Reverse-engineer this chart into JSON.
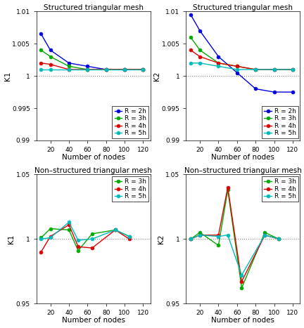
{
  "top_left": {
    "title": "Structured triangular mesh",
    "ylabel": "K1",
    "xlabel": "Number of nodes",
    "ylim": [
      0.99,
      1.01
    ],
    "yticks": [
      0.99,
      0.995,
      1.0,
      1.005,
      1.01
    ],
    "xticks": [
      20,
      40,
      60,
      80,
      100,
      120
    ],
    "xlim": [
      5,
      128
    ],
    "nodes": [
      10,
      20,
      40,
      60,
      80,
      100,
      120
    ],
    "series": [
      {
        "label": "R = 2h",
        "color": "#0000dd",
        "values": [
          1.0065,
          1.004,
          1.002,
          1.0015,
          1.001,
          1.001,
          1.001
        ]
      },
      {
        "label": "R = 3h",
        "color": "#00aa00",
        "values": [
          1.004,
          1.003,
          1.0015,
          1.001,
          1.001,
          1.001,
          1.001
        ]
      },
      {
        "label": "R = 4h",
        "color": "#dd0000",
        "values": [
          1.002,
          1.0018,
          1.001,
          1.001,
          1.001,
          1.001,
          1.001
        ]
      },
      {
        "label": "R = 5h",
        "color": "#00bbbb",
        "values": [
          1.001,
          1.001,
          1.001,
          1.001,
          1.001,
          1.001,
          1.001
        ]
      }
    ]
  },
  "top_right": {
    "title": "Structured triangular mesh",
    "ylabel": "K2",
    "xlabel": "Number of nodes",
    "ylim": [
      0.99,
      1.01
    ],
    "yticks": [
      0.99,
      0.995,
      1.0,
      1.005,
      1.01
    ],
    "xticks": [
      20,
      40,
      60,
      80,
      100,
      120
    ],
    "xlim": [
      5,
      128
    ],
    "nodes": [
      10,
      20,
      40,
      60,
      80,
      100,
      120
    ],
    "series": [
      {
        "label": "R = 2h",
        "color": "#0000dd",
        "values": [
          1.0095,
          1.007,
          1.003,
          1.0005,
          0.998,
          0.9975,
          0.9975
        ]
      },
      {
        "label": "R = 3h",
        "color": "#00aa00",
        "values": [
          1.006,
          1.004,
          1.002,
          1.0015,
          1.001,
          1.001,
          1.001
        ]
      },
      {
        "label": "R = 4h",
        "color": "#dd0000",
        "values": [
          1.004,
          1.003,
          1.002,
          1.0015,
          1.001,
          1.001,
          1.001
        ]
      },
      {
        "label": "R = 5h",
        "color": "#00bbbb",
        "values": [
          1.002,
          1.002,
          1.0015,
          1.001,
          1.001,
          1.001,
          1.001
        ]
      }
    ]
  },
  "bot_left": {
    "title": "Non–structured triangular mesh",
    "ylabel": "K1",
    "xlabel": "Number of nodes",
    "ylim": [
      0.95,
      1.05
    ],
    "yticks": [
      0.95,
      1.0,
      1.05
    ],
    "xticks": [
      20,
      40,
      60,
      80,
      100,
      120
    ],
    "xlim": [
      5,
      128
    ],
    "nodes": [
      10,
      20,
      40,
      50,
      65,
      90,
      105
    ],
    "series": [
      {
        "label": "R = 3h",
        "color": "#00aa00",
        "values": [
          1.001,
          1.008,
          1.007,
          0.991,
          1.004,
          1.007,
          1.002
        ]
      },
      {
        "label": "R = 4h",
        "color": "#dd0000",
        "values": [
          0.99,
          1.002,
          1.011,
          0.994,
          0.993,
          1.007,
          1.0
        ]
      },
      {
        "label": "R = 5h",
        "color": "#00bbbb",
        "values": [
          1.0,
          1.001,
          1.013,
          0.999,
          1.0,
          1.007,
          1.002
        ]
      }
    ]
  },
  "bot_right": {
    "title": "Non–structured triangular mesh",
    "ylabel": "K2",
    "xlabel": "Number of nodes",
    "ylim": [
      0.95,
      1.05
    ],
    "yticks": [
      0.95,
      1.0,
      1.05
    ],
    "xticks": [
      20,
      40,
      60,
      80,
      100,
      120
    ],
    "xlim": [
      5,
      128
    ],
    "nodes": [
      10,
      20,
      40,
      50,
      65,
      90,
      105
    ],
    "series": [
      {
        "label": "R = 3h",
        "color": "#00aa00",
        "values": [
          1.0,
          1.005,
          0.995,
          1.038,
          0.962,
          1.005,
          1.0
        ]
      },
      {
        "label": "R = 4h",
        "color": "#dd0000",
        "values": [
          1.0,
          1.003,
          1.003,
          1.04,
          0.967,
          1.003,
          1.0
        ]
      },
      {
        "label": "R = 5h",
        "color": "#00bbbb",
        "values": [
          1.0,
          1.003,
          1.002,
          1.003,
          0.972,
          1.003,
          1.0
        ]
      }
    ]
  },
  "marker": "o",
  "markersize": 3.5,
  "linewidth": 1.0,
  "bg_color": "#ffffff",
  "axes_bg": "#ffffff",
  "title_fontsize": 7.5,
  "label_fontsize": 7.5,
  "tick_fontsize": 6.5,
  "legend_fontsize": 6.5
}
